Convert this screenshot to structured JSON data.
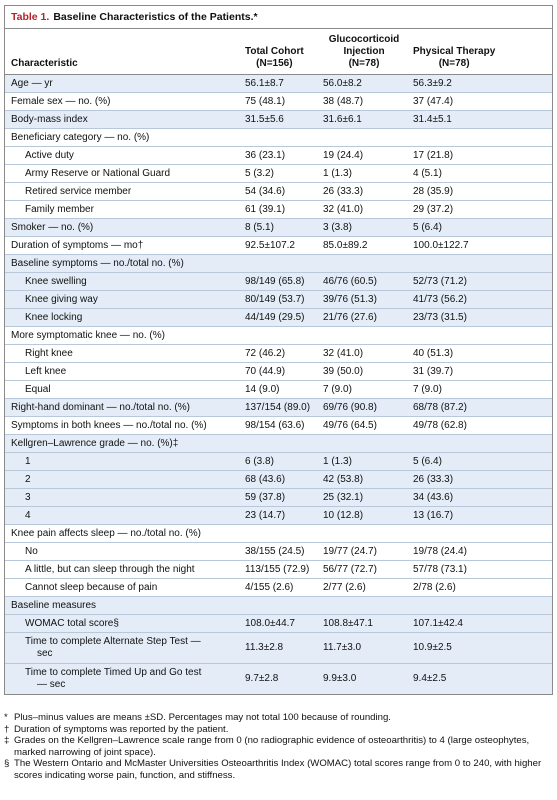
{
  "header": {
    "label": "Table 1.",
    "title": "Baseline Characteristics of the Patients.*"
  },
  "table": {
    "columns": [
      {
        "name": "Characteristic"
      },
      {
        "name": "Total Cohort",
        "n": "(N=156)"
      },
      {
        "name": "Glucocorticoid Injection",
        "n": "(N=78)"
      },
      {
        "name": "Physical Therapy",
        "n": "(N=78)"
      }
    ],
    "groups": [
      {
        "label": "Age — yr",
        "values": [
          "56.1±8.7",
          "56.0±8.2",
          "56.3±9.2"
        ]
      },
      {
        "label": "Female sex — no. (%)",
        "values": [
          "75 (48.1)",
          "38 (48.7)",
          "37 (47.4)"
        ]
      },
      {
        "label": "Body-mass index",
        "values": [
          "31.5±5.6",
          "31.6±6.1",
          "31.4±5.1"
        ]
      },
      {
        "label": "Beneficiary category — no. (%)",
        "items": [
          {
            "label": "Active duty",
            "values": [
              "36 (23.1)",
              "19 (24.4)",
              "17 (21.8)"
            ]
          },
          {
            "label": "Army Reserve or National Guard",
            "values": [
              "5 (3.2)",
              "1 (1.3)",
              "4 (5.1)"
            ]
          },
          {
            "label": "Retired service member",
            "values": [
              "54 (34.6)",
              "26 (33.3)",
              "28 (35.9)"
            ]
          },
          {
            "label": "Family member",
            "values": [
              "61 (39.1)",
              "32 (41.0)",
              "29 (37.2)"
            ]
          }
        ]
      },
      {
        "label": "Smoker — no. (%)",
        "values": [
          "8 (5.1)",
          "3 (3.8)",
          "5 (6.4)"
        ]
      },
      {
        "label": "Duration of symptoms — mo†",
        "values": [
          "92.5±107.2",
          "85.0±89.2",
          "100.0±122.7"
        ]
      },
      {
        "label": "Baseline symptoms — no./total no. (%)",
        "items": [
          {
            "label": "Knee swelling",
            "values": [
              "98/149 (65.8)",
              "46/76 (60.5)",
              "52/73 (71.2)"
            ]
          },
          {
            "label": "Knee giving way",
            "values": [
              "80/149 (53.7)",
              "39/76 (51.3)",
              "41/73 (56.2)"
            ]
          },
          {
            "label": "Knee locking",
            "values": [
              "44/149 (29.5)",
              "21/76 (27.6)",
              "23/73 (31.5)"
            ]
          }
        ]
      },
      {
        "label": "More symptomatic knee — no. (%)",
        "items": [
          {
            "label": "Right knee",
            "values": [
              "72 (46.2)",
              "32 (41.0)",
              "40 (51.3)"
            ]
          },
          {
            "label": "Left knee",
            "values": [
              "70 (44.9)",
              "39 (50.0)",
              "31 (39.7)"
            ]
          },
          {
            "label": "Equal",
            "values": [
              "14 (9.0)",
              "7 (9.0)",
              "7 (9.0)"
            ]
          }
        ]
      },
      {
        "label": "Right-hand dominant — no./total no. (%)",
        "values": [
          "137/154 (89.0)",
          "69/76 (90.8)",
          "68/78 (87.2)"
        ]
      },
      {
        "label": "Symptoms in both knees — no./total no. (%)",
        "values": [
          "98/154 (63.6)",
          "49/76 (64.5)",
          "49/78 (62.8)"
        ]
      },
      {
        "label": "Kellgren–Lawrence grade — no. (%)‡",
        "items": [
          {
            "label": "1",
            "values": [
              "6 (3.8)",
              "1 (1.3)",
              "5 (6.4)"
            ]
          },
          {
            "label": "2",
            "values": [
              "68 (43.6)",
              "42 (53.8)",
              "26 (33.3)"
            ]
          },
          {
            "label": "3",
            "values": [
              "59 (37.8)",
              "25 (32.1)",
              "34 (43.6)"
            ]
          },
          {
            "label": "4",
            "values": [
              "23 (14.7)",
              "10 (12.8)",
              "13 (16.7)"
            ]
          }
        ]
      },
      {
        "label": "Knee pain affects sleep — no./total no. (%)",
        "items": [
          {
            "label": "No",
            "values": [
              "38/155 (24.5)",
              "19/77 (24.7)",
              "19/78 (24.4)"
            ]
          },
          {
            "label": "A little, but can sleep through the night",
            "values": [
              "113/155 (72.9)",
              "56/77 (72.7)",
              "57/78 (73.1)"
            ]
          },
          {
            "label": "Cannot sleep because of pain",
            "values": [
              "4/155 (2.6)",
              "2/77 (2.6)",
              "2/78 (2.6)"
            ]
          }
        ]
      },
      {
        "label": "Baseline measures",
        "items": [
          {
            "label": "WOMAC total score§",
            "values": [
              "108.0±44.7",
              "108.8±47.1",
              "107.1±42.4"
            ]
          },
          {
            "label": [
              "Time to complete Alternate Step Test —",
              "sec"
            ],
            "values": [
              "11.3±2.8",
              "11.7±3.0",
              "10.9±2.5"
            ]
          },
          {
            "label": [
              "Time to complete Timed Up and Go test",
              "— sec"
            ],
            "values": [
              "9.7±2.8",
              "9.9±3.0",
              "9.4±2.5"
            ]
          }
        ]
      }
    ]
  },
  "notes": [
    {
      "mark": "*",
      "text": "Plus–minus values are means ±SD. Percentages may not total 100 because of rounding."
    },
    {
      "mark": "†",
      "text": "Duration of symptoms was reported by the patient."
    },
    {
      "mark": "‡",
      "text": "Grades on the Kellgren–Lawrence scale range from 0 (no radiographic evidence of osteoarthritis) to 4 (large osteophytes, marked narrowing of joint space)."
    },
    {
      "mark": "§",
      "text": "The Western Ontario and McMaster Universities Osteoarthritis Index (WOMAC) total scores range from 0 to 240, with higher scores indicating worse pain, function, and stiffness."
    }
  ]
}
